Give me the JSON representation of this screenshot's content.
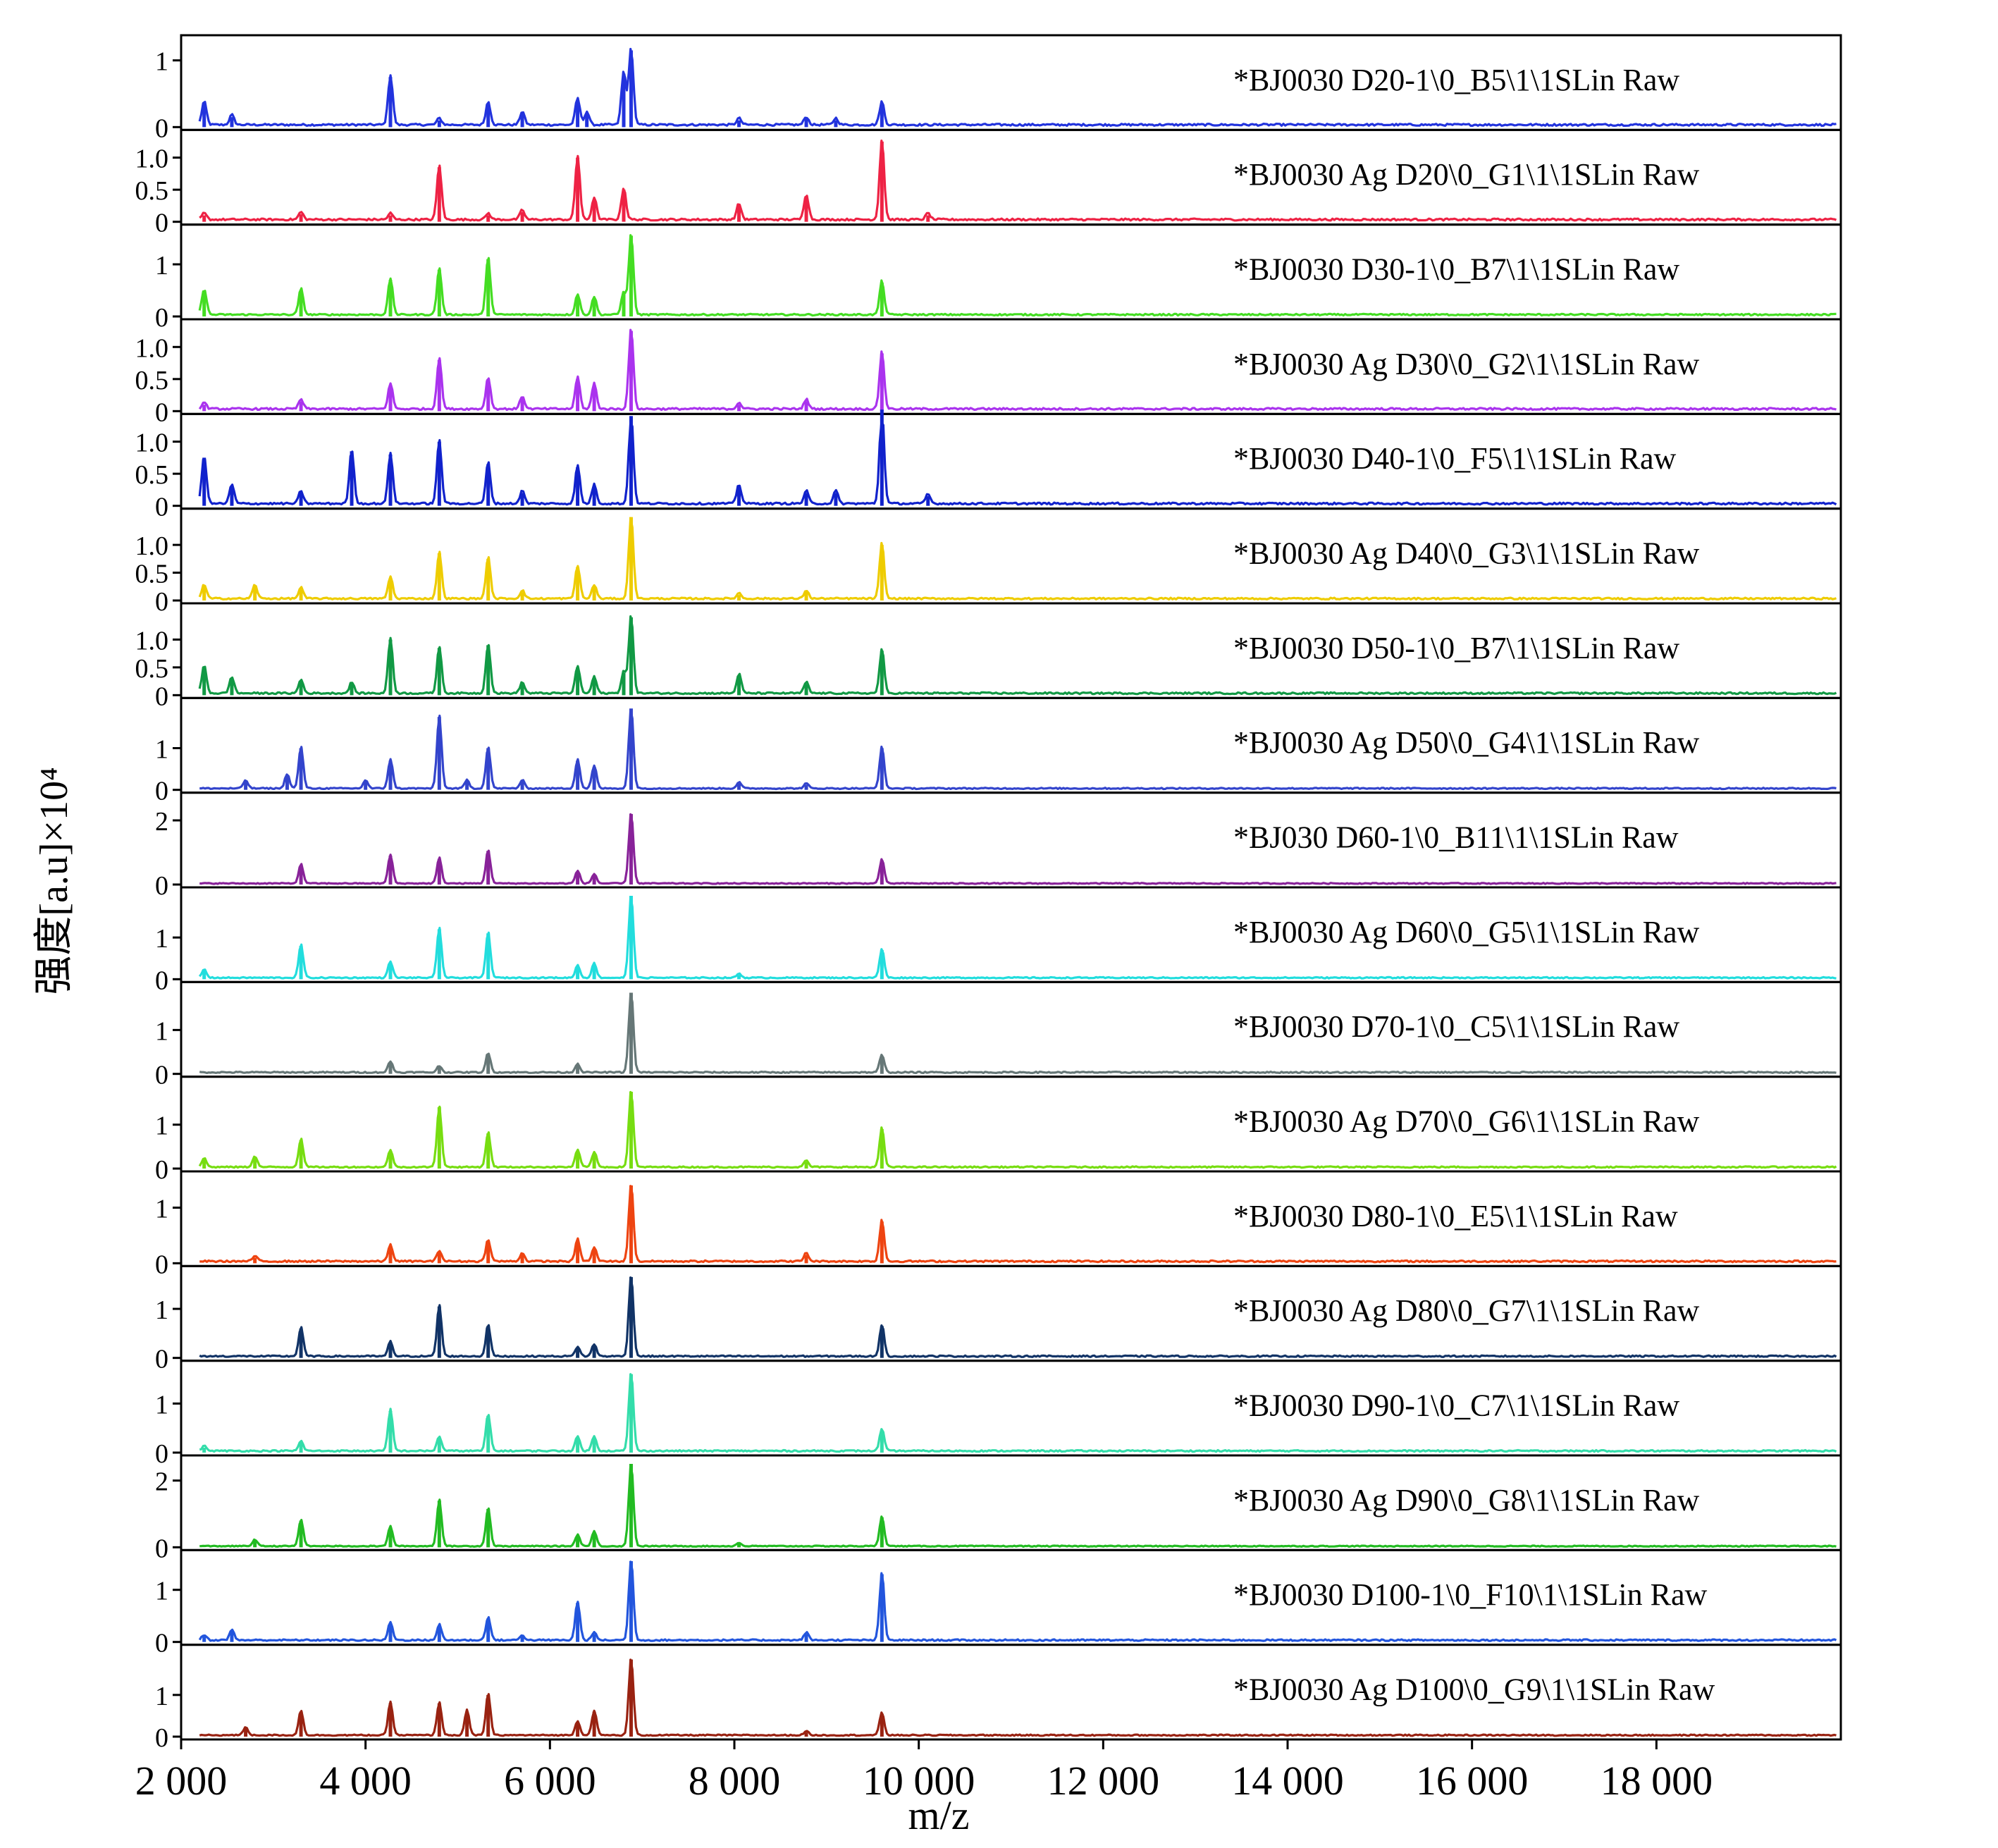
{
  "chart_data": {
    "type": "line",
    "ylabel": "强度[a.u]×10⁴",
    "xlabel": "m/z",
    "xlim": [
      2000,
      20000
    ],
    "x_ticks": [
      {
        "v": 2000,
        "label": "2 000"
      },
      {
        "v": 4000,
        "label": "4 000"
      },
      {
        "v": 6000,
        "label": "6 000"
      },
      {
        "v": 8000,
        "label": "8 000"
      },
      {
        "v": 10000,
        "label": "10 000"
      },
      {
        "v": 12000,
        "label": "12 000"
      },
      {
        "v": 14000,
        "label": "14 000"
      },
      {
        "v": 16000,
        "label": "16 000"
      },
      {
        "v": 18000,
        "label": "18 000"
      }
    ],
    "panels": [
      {
        "label": "*BJ0030 D20-1\\0_B5\\1\\1SLin Raw",
        "color": "#2233dd",
        "ymax": 1.25,
        "ticks": [
          {
            "v": 0,
            "t": "0"
          },
          {
            "v": 1,
            "t": "1"
          }
        ],
        "peaks": [
          [
            2250,
            0.35
          ],
          [
            2550,
            0.15
          ],
          [
            4270,
            0.75
          ],
          [
            4800,
            0.1
          ],
          [
            5330,
            0.35
          ],
          [
            5700,
            0.2
          ],
          [
            6300,
            0.4
          ],
          [
            6400,
            0.2
          ],
          [
            6800,
            0.8
          ],
          [
            6880,
            1.15
          ],
          [
            8050,
            0.1
          ],
          [
            8780,
            0.12
          ],
          [
            9100,
            0.1
          ],
          [
            9600,
            0.35
          ]
        ]
      },
      {
        "label": "*BJ0030 Ag D20\\0_G1\\1\\1SLin Raw",
        "color": "#ee2244",
        "ymax": 1.3,
        "ticks": [
          {
            "v": 0,
            "t": "0"
          },
          {
            "v": 0.5,
            "t": "0.5"
          },
          {
            "v": 1,
            "t": "1.0"
          }
        ],
        "peaks": [
          [
            2250,
            0.1
          ],
          [
            3300,
            0.12
          ],
          [
            4270,
            0.1
          ],
          [
            4800,
            0.85
          ],
          [
            5330,
            0.1
          ],
          [
            5700,
            0.15
          ],
          [
            6300,
            1.0
          ],
          [
            6480,
            0.35
          ],
          [
            6800,
            0.5
          ],
          [
            8050,
            0.25
          ],
          [
            8780,
            0.4
          ],
          [
            9600,
            1.25
          ],
          [
            10100,
            0.1
          ]
        ]
      },
      {
        "label": "*BJ0030 D30-1\\0_B7\\1\\1SLin Raw",
        "color": "#44dd22",
        "ymax": 1.6,
        "ticks": [
          {
            "v": 0,
            "t": "0"
          },
          {
            "v": 1,
            "t": "1"
          }
        ],
        "peaks": [
          [
            2250,
            0.5
          ],
          [
            3300,
            0.5
          ],
          [
            4270,
            0.7
          ],
          [
            4800,
            0.9
          ],
          [
            5330,
            1.1
          ],
          [
            6300,
            0.4
          ],
          [
            6480,
            0.35
          ],
          [
            6800,
            0.45
          ],
          [
            6880,
            1.55
          ],
          [
            9600,
            0.65
          ]
        ]
      },
      {
        "label": "*BJ0030 Ag D30\\0_G2\\1\\1SLin Raw",
        "color": "#aa33ee",
        "ymax": 1.3,
        "ticks": [
          {
            "v": 0,
            "t": "0"
          },
          {
            "v": 0.5,
            "t": "0.5"
          },
          {
            "v": 1,
            "t": "1.0"
          }
        ],
        "peaks": [
          [
            2250,
            0.1
          ],
          [
            3300,
            0.15
          ],
          [
            4270,
            0.4
          ],
          [
            4800,
            0.8
          ],
          [
            5330,
            0.5
          ],
          [
            5700,
            0.2
          ],
          [
            6300,
            0.5
          ],
          [
            6480,
            0.4
          ],
          [
            6880,
            1.25
          ],
          [
            8050,
            0.1
          ],
          [
            8780,
            0.15
          ],
          [
            9600,
            0.9
          ]
        ]
      },
      {
        "label": "*BJ0030 D40-1\\0_F5\\1\\1SLin Raw",
        "color": "#1122cc",
        "ymax": 1.3,
        "ticks": [
          {
            "v": 0,
            "t": "0"
          },
          {
            "v": 0.5,
            "t": "0.5"
          },
          {
            "v": 1,
            "t": "1.0"
          }
        ],
        "peaks": [
          [
            2250,
            0.75
          ],
          [
            2550,
            0.3
          ],
          [
            3300,
            0.2
          ],
          [
            3850,
            0.85
          ],
          [
            4270,
            0.8
          ],
          [
            4800,
            1.0
          ],
          [
            5330,
            0.65
          ],
          [
            5700,
            0.2
          ],
          [
            6300,
            0.6
          ],
          [
            6480,
            0.3
          ],
          [
            6880,
            1.4
          ],
          [
            8050,
            0.3
          ],
          [
            8780,
            0.2
          ],
          [
            9100,
            0.2
          ],
          [
            9600,
            1.5
          ],
          [
            10100,
            0.15
          ]
        ]
      },
      {
        "label": "*BJ0030 Ag D40\\0_G3\\1\\1SLin Raw",
        "color": "#eecc00",
        "ymax": 1.5,
        "ticks": [
          {
            "v": 0,
            "t": "0"
          },
          {
            "v": 0.5,
            "t": "0.5"
          },
          {
            "v": 1,
            "t": "1.0"
          }
        ],
        "peaks": [
          [
            2250,
            0.25
          ],
          [
            2800,
            0.25
          ],
          [
            3300,
            0.2
          ],
          [
            4270,
            0.4
          ],
          [
            4800,
            0.85
          ],
          [
            5330,
            0.75
          ],
          [
            5700,
            0.15
          ],
          [
            6300,
            0.6
          ],
          [
            6480,
            0.25
          ],
          [
            6880,
            1.5
          ],
          [
            8050,
            0.1
          ],
          [
            8780,
            0.15
          ],
          [
            9600,
            1.0
          ]
        ]
      },
      {
        "label": "*BJ0030 D50-1\\0_B7\\1\\1SLin Raw",
        "color": "#119944",
        "ymax": 1.5,
        "ticks": [
          {
            "v": 0,
            "t": "0"
          },
          {
            "v": 0.5,
            "t": "0.5"
          },
          {
            "v": 1,
            "t": "1.0"
          }
        ],
        "peaks": [
          [
            2250,
            0.5
          ],
          [
            2550,
            0.3
          ],
          [
            3300,
            0.25
          ],
          [
            3850,
            0.2
          ],
          [
            4270,
            1.0
          ],
          [
            4800,
            0.85
          ],
          [
            5330,
            0.9
          ],
          [
            5700,
            0.2
          ],
          [
            6300,
            0.5
          ],
          [
            6480,
            0.3
          ],
          [
            6800,
            0.4
          ],
          [
            6880,
            1.4
          ],
          [
            8050,
            0.35
          ],
          [
            8780,
            0.2
          ],
          [
            9600,
            0.8
          ]
        ]
      },
      {
        "label": "*BJ0030 Ag D50\\0_G4\\1\\1SLin Raw",
        "color": "#3344cc",
        "ymax": 2.0,
        "ticks": [
          {
            "v": 0,
            "t": "0"
          },
          {
            "v": 1,
            "t": "1"
          }
        ],
        "peaks": [
          [
            2700,
            0.2
          ],
          [
            3150,
            0.35
          ],
          [
            3300,
            1.0
          ],
          [
            4000,
            0.2
          ],
          [
            4270,
            0.7
          ],
          [
            4800,
            1.75
          ],
          [
            5100,
            0.2
          ],
          [
            5330,
            1.0
          ],
          [
            5700,
            0.2
          ],
          [
            6300,
            0.7
          ],
          [
            6480,
            0.55
          ],
          [
            6880,
            1.95
          ],
          [
            8050,
            0.15
          ],
          [
            8780,
            0.12
          ],
          [
            9600,
            1.0
          ]
        ]
      },
      {
        "label": "*BJ030 D60-1\\0_B11\\1\\1SLin Raw",
        "color": "#882299",
        "ymax": 2.6,
        "ticks": [
          {
            "v": 0,
            "t": "0"
          },
          {
            "v": 2,
            "t": "2"
          }
        ],
        "peaks": [
          [
            3300,
            0.6
          ],
          [
            4270,
            0.9
          ],
          [
            4800,
            0.8
          ],
          [
            5330,
            1.05
          ],
          [
            6300,
            0.4
          ],
          [
            6480,
            0.3
          ],
          [
            6880,
            2.2
          ],
          [
            9600,
            0.75
          ]
        ]
      },
      {
        "label": "*BJ0030 Ag D60\\0_G5\\1\\1SLin Raw",
        "color": "#22dddd",
        "ymax": 2.0,
        "ticks": [
          {
            "v": 0,
            "t": "0"
          },
          {
            "v": 1,
            "t": "1"
          }
        ],
        "peaks": [
          [
            2250,
            0.2
          ],
          [
            3300,
            0.8
          ],
          [
            4270,
            0.4
          ],
          [
            4800,
            1.2
          ],
          [
            5330,
            1.1
          ],
          [
            6300,
            0.3
          ],
          [
            6480,
            0.35
          ],
          [
            6880,
            2.0
          ],
          [
            8050,
            0.1
          ],
          [
            9600,
            0.7
          ]
        ]
      },
      {
        "label": "*BJ0030 D70-1\\0_C5\\1\\1SLin Raw",
        "color": "#667777",
        "ymax": 1.9,
        "ticks": [
          {
            "v": 0,
            "t": "0"
          },
          {
            "v": 1,
            "t": "1"
          }
        ],
        "peaks": [
          [
            4270,
            0.25
          ],
          [
            4800,
            0.15
          ],
          [
            5330,
            0.45
          ],
          [
            6300,
            0.2
          ],
          [
            6880,
            1.85
          ],
          [
            9600,
            0.4
          ]
        ]
      },
      {
        "label": "*BJ0030 Ag D70\\0_G6\\1\\1SLin Raw",
        "color": "#77dd11",
        "ymax": 1.9,
        "ticks": [
          {
            "v": 0,
            "t": "0"
          },
          {
            "v": 1,
            "t": "1"
          }
        ],
        "peaks": [
          [
            2250,
            0.2
          ],
          [
            2800,
            0.25
          ],
          [
            3300,
            0.65
          ],
          [
            4270,
            0.4
          ],
          [
            4800,
            1.4
          ],
          [
            5330,
            0.8
          ],
          [
            6300,
            0.4
          ],
          [
            6480,
            0.35
          ],
          [
            6880,
            1.75
          ],
          [
            8780,
            0.15
          ],
          [
            9600,
            0.9
          ]
        ]
      },
      {
        "label": "*BJ0030 D80-1\\0_E5\\1\\1SLin Raw",
        "color": "#ee4411",
        "ymax": 1.5,
        "ticks": [
          {
            "v": 0,
            "t": "0"
          },
          {
            "v": 1,
            "t": "1"
          }
        ],
        "peaks": [
          [
            2800,
            0.1
          ],
          [
            4270,
            0.3
          ],
          [
            4800,
            0.2
          ],
          [
            5330,
            0.4
          ],
          [
            5700,
            0.15
          ],
          [
            6300,
            0.4
          ],
          [
            6480,
            0.25
          ],
          [
            6880,
            1.4
          ],
          [
            8780,
            0.15
          ],
          [
            9600,
            0.75
          ]
        ]
      },
      {
        "label": "*BJ0030 Ag D80\\0_G7\\1\\1SLin Raw",
        "color": "#113366",
        "ymax": 1.7,
        "ticks": [
          {
            "v": 0,
            "t": "0"
          },
          {
            "v": 1,
            "t": "1"
          }
        ],
        "peaks": [
          [
            3300,
            0.6
          ],
          [
            4270,
            0.3
          ],
          [
            4800,
            1.05
          ],
          [
            5330,
            0.65
          ],
          [
            6300,
            0.2
          ],
          [
            6480,
            0.25
          ],
          [
            6880,
            1.65
          ],
          [
            9600,
            0.65
          ]
        ]
      },
      {
        "label": "*BJ0030 D90-1\\0_C7\\1\\1SLin Raw",
        "color": "#33ddaa",
        "ymax": 1.7,
        "ticks": [
          {
            "v": 0,
            "t": "0"
          },
          {
            "v": 1,
            "t": "1"
          }
        ],
        "peaks": [
          [
            2250,
            0.1
          ],
          [
            3300,
            0.2
          ],
          [
            4270,
            0.85
          ],
          [
            4800,
            0.3
          ],
          [
            5330,
            0.75
          ],
          [
            6300,
            0.3
          ],
          [
            6480,
            0.3
          ],
          [
            6880,
            1.6
          ],
          [
            9600,
            0.45
          ]
        ]
      },
      {
        "label": "*BJ0030 Ag D90\\0_G8\\1\\1SLin Raw",
        "color": "#22bb22",
        "ymax": 2.5,
        "ticks": [
          {
            "v": 0,
            "t": "0"
          },
          {
            "v": 2,
            "t": "2"
          }
        ],
        "peaks": [
          [
            2800,
            0.2
          ],
          [
            3300,
            0.8
          ],
          [
            4270,
            0.6
          ],
          [
            4800,
            1.4
          ],
          [
            5330,
            1.15
          ],
          [
            6300,
            0.35
          ],
          [
            6480,
            0.45
          ],
          [
            6880,
            2.5
          ],
          [
            8050,
            0.1
          ],
          [
            9600,
            0.9
          ]
        ]
      },
      {
        "label": "*BJ0030 D100-1\\0_F10\\1\\1SLin Raw",
        "color": "#2255dd",
        "ymax": 1.6,
        "ticks": [
          {
            "v": 0,
            "t": "0"
          },
          {
            "v": 1,
            "t": "1"
          }
        ],
        "peaks": [
          [
            2250,
            0.1
          ],
          [
            2550,
            0.2
          ],
          [
            4270,
            0.35
          ],
          [
            4800,
            0.3
          ],
          [
            5330,
            0.45
          ],
          [
            5700,
            0.1
          ],
          [
            6300,
            0.75
          ],
          [
            6480,
            0.15
          ],
          [
            6880,
            1.55
          ],
          [
            8780,
            0.15
          ],
          [
            9600,
            1.3
          ]
        ]
      },
      {
        "label": "*BJ0030 Ag D100\\0_G9\\1\\1SLin Raw",
        "color": "#992211",
        "ymax": 2.0,
        "ticks": [
          {
            "v": 0,
            "t": "0"
          },
          {
            "v": 1,
            "t": "1"
          }
        ],
        "peaks": [
          [
            2700,
            0.2
          ],
          [
            3300,
            0.6
          ],
          [
            4270,
            0.8
          ],
          [
            4800,
            0.8
          ],
          [
            5100,
            0.6
          ],
          [
            5330,
            1.0
          ],
          [
            6300,
            0.35
          ],
          [
            6480,
            0.6
          ],
          [
            6880,
            1.85
          ],
          [
            8780,
            0.1
          ],
          [
            9600,
            0.55
          ]
        ]
      }
    ]
  }
}
